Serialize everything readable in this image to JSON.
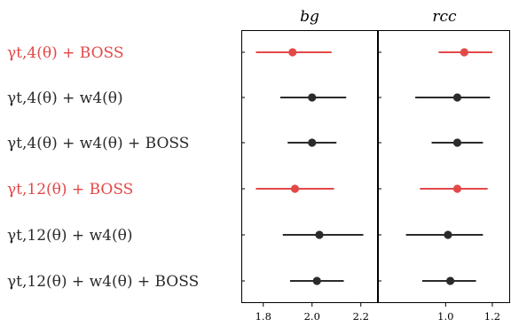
{
  "chart_data": {
    "type": "scatter",
    "style": "forest-plot (point estimate with horizontal error bar)",
    "row_labels": [
      "γt,4(θ) + BOSS",
      "γt,4(θ) + w4(θ)",
      "γt,4(θ) + w4(θ) + BOSS",
      "γt,12(θ) + BOSS",
      "γt,12(θ) + w4(θ)",
      "γt,12(θ) + w4(θ) + BOSS"
    ],
    "row_colors": [
      "#e34848",
      "#2b2b2b",
      "#2b2b2b",
      "#e34848",
      "#2b2b2b",
      "#2b2b2b"
    ],
    "panels": [
      {
        "title": "bg",
        "xlim": [
          1.71,
          2.27
        ],
        "ticks": [
          1.8,
          2.0,
          2.2
        ],
        "tick_labels": [
          "1.8",
          "2.0",
          "2.2"
        ],
        "points": [
          {
            "value": 1.92,
            "low": 1.77,
            "high": 2.08
          },
          {
            "value": 2.0,
            "low": 1.87,
            "high": 2.14
          },
          {
            "value": 2.0,
            "low": 1.9,
            "high": 2.1
          },
          {
            "value": 1.93,
            "low": 1.77,
            "high": 2.09
          },
          {
            "value": 2.03,
            "low": 1.88,
            "high": 2.21
          },
          {
            "value": 2.02,
            "low": 1.91,
            "high": 2.13
          }
        ]
      },
      {
        "title": "rcc",
        "xlim": [
          0.71,
          1.28
        ],
        "ticks": [
          1.0,
          1.2
        ],
        "tick_labels": [
          "1.0",
          "1.2"
        ],
        "points": [
          {
            "value": 1.08,
            "low": 0.97,
            "high": 1.2
          },
          {
            "value": 1.05,
            "low": 0.87,
            "high": 1.19
          },
          {
            "value": 1.05,
            "low": 0.94,
            "high": 1.16
          },
          {
            "value": 1.05,
            "low": 0.89,
            "high": 1.18
          },
          {
            "value": 1.01,
            "low": 0.83,
            "high": 1.16
          },
          {
            "value": 1.02,
            "low": 0.9,
            "high": 1.13
          }
        ]
      }
    ],
    "grid": false,
    "legend": "none"
  }
}
